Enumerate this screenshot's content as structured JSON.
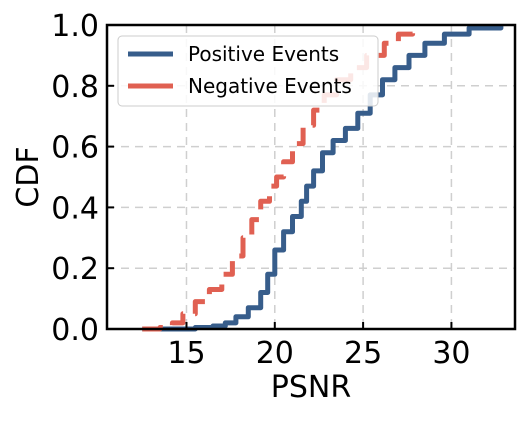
{
  "chart_data": {
    "type": "line",
    "title": "",
    "xlabel": "PSNR",
    "ylabel": "CDF",
    "xlim": [
      10.5,
      33.6
    ],
    "ylim": [
      0.0,
      1.0
    ],
    "xticks": [
      15,
      20,
      25,
      30
    ],
    "yticks": [
      0.0,
      0.2,
      0.4,
      0.6,
      0.8,
      1.0
    ],
    "xtick_labels": [
      "15",
      "20",
      "25",
      "30"
    ],
    "ytick_labels": [
      "0.0",
      "0.2",
      "0.4",
      "0.6",
      "0.8",
      "1.0"
    ],
    "grid": true,
    "legend_position": "top-left",
    "series": [
      {
        "name": "Positive Events",
        "color": "#375d8b",
        "style": "solid",
        "x": [
          12.5,
          13.5,
          14.5,
          15.5,
          16.5,
          17.2,
          17.8,
          18.5,
          19.2,
          19.6,
          20.0,
          20.5,
          21.0,
          21.5,
          21.8,
          22.2,
          22.7,
          23.3,
          24.0,
          24.7,
          25.4,
          26.1,
          26.8,
          27.6,
          28.5,
          29.6,
          31.0,
          32.8
        ],
        "y": [
          0.0,
          0.0,
          0.0,
          0.005,
          0.01,
          0.02,
          0.04,
          0.07,
          0.12,
          0.18,
          0.26,
          0.32,
          0.37,
          0.42,
          0.47,
          0.52,
          0.58,
          0.62,
          0.66,
          0.71,
          0.77,
          0.82,
          0.86,
          0.9,
          0.94,
          0.97,
          0.99,
          1.0
        ]
      },
      {
        "name": "Negative Events",
        "color": "#e06052",
        "style": "dashed",
        "x": [
          12.5,
          13.5,
          14.2,
          14.8,
          15.5,
          16.3,
          17.0,
          17.6,
          18.2,
          18.7,
          19.2,
          19.7,
          20.1,
          20.5,
          21.0,
          21.6,
          22.2,
          22.8,
          23.5,
          24.3,
          25.2,
          26.2,
          27.0,
          27.8
        ],
        "y": [
          0.0,
          0.005,
          0.02,
          0.05,
          0.09,
          0.13,
          0.18,
          0.24,
          0.3,
          0.36,
          0.42,
          0.47,
          0.5,
          0.55,
          0.61,
          0.67,
          0.72,
          0.77,
          0.82,
          0.86,
          0.9,
          0.94,
          0.97,
          1.0
        ]
      }
    ]
  }
}
